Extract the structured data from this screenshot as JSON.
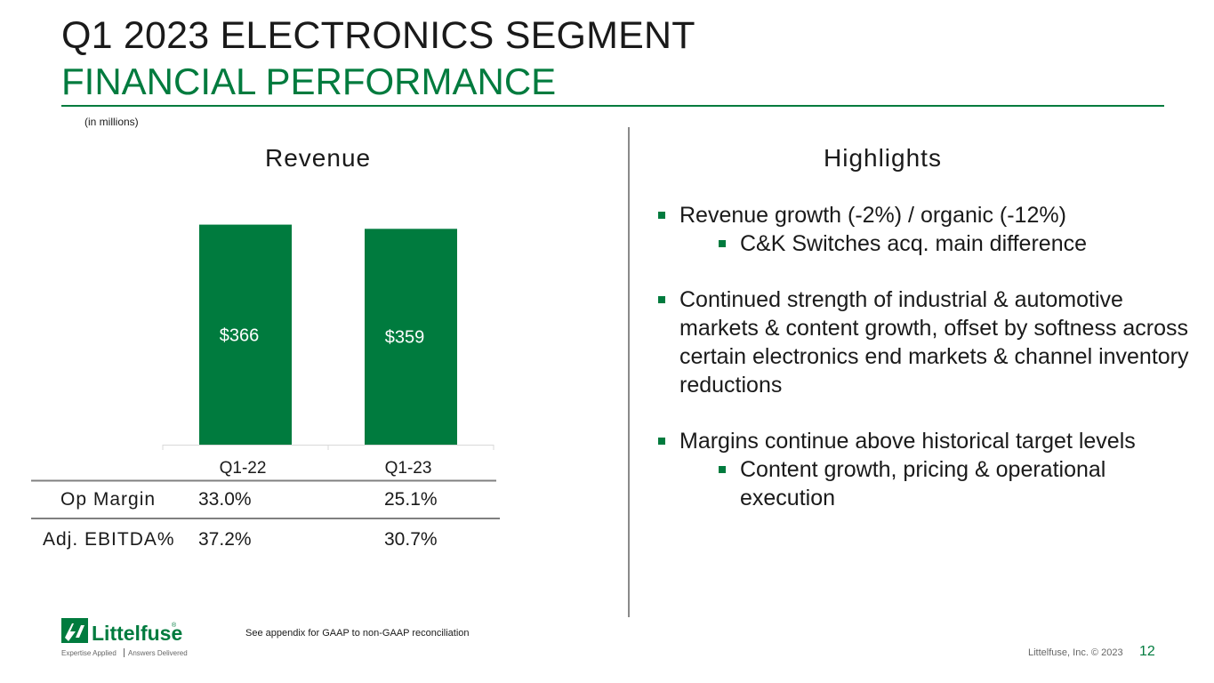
{
  "header": {
    "title": "Q1 2023 ELECTRONICS SEGMENT",
    "subtitle": "FINANCIAL PERFORMANCE",
    "units_note": "(in millions)"
  },
  "chart_data": {
    "type": "bar",
    "title": "Revenue",
    "categories": [
      "Q1-22",
      "Q1-23"
    ],
    "values": [
      366,
      359
    ],
    "data_labels": [
      "$366",
      "$359"
    ],
    "ylim": [
      0,
      400
    ],
    "xlabel": "",
    "ylabel": "",
    "bar_color": "#007b3e",
    "label_color": "#ffffff"
  },
  "metrics": {
    "rows": [
      {
        "label": "Op Margin",
        "values": [
          "33.0%",
          "25.1%"
        ]
      },
      {
        "label": "Adj. EBITDA%",
        "values": [
          "37.2%",
          "30.7%"
        ]
      }
    ]
  },
  "highlights": {
    "title": "Highlights",
    "items": [
      {
        "text": "Revenue growth (-2%) / organic (-12%)",
        "sub": [
          "C&K Switches acq. main difference"
        ]
      },
      {
        "text": "Continued strength of industrial & automotive markets & content growth, offset by softness across certain electronics end markets & channel inventory reductions",
        "sub": []
      },
      {
        "text": "Margins continue above historical target levels",
        "sub": [
          "Content growth, pricing & operational execution"
        ]
      }
    ]
  },
  "footer": {
    "logo_text": "Littelfuse",
    "tagline_left": "Expertise Applied",
    "tagline_right": "Answers Delivered",
    "note": "See appendix for GAAP to non-GAAP reconciliation",
    "copyright": "Littelfuse, Inc. © 2023",
    "page_number": "12"
  },
  "colors": {
    "brand_green": "#007b3e",
    "text": "#1a1a1a"
  }
}
